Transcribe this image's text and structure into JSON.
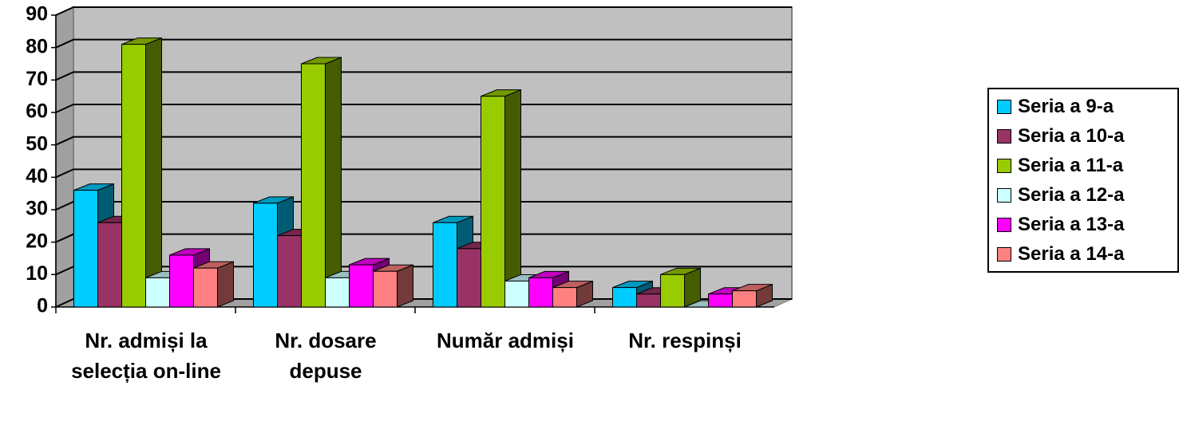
{
  "chart_data": {
    "type": "bar3d",
    "categories": [
      "Nr. admiși la selecția on-line",
      "Nr. dosare depuse",
      "Număr admiși",
      "Nr. respinși"
    ],
    "series": [
      {
        "name": "Seria a 9-a",
        "color": "#00ccff",
        "values": [
          36,
          32,
          26,
          6
        ]
      },
      {
        "name": "Seria a 10-a",
        "color": "#993366",
        "values": [
          26,
          22,
          18,
          4
        ]
      },
      {
        "name": "Seria a 11-a",
        "color": "#99cc00",
        "values": [
          81,
          75,
          65,
          10
        ]
      },
      {
        "name": "Seria a 12-a",
        "color": "#ccffff",
        "values": [
          9,
          9,
          8,
          0
        ]
      },
      {
        "name": "Seria a 13-a",
        "color": "#ff00ff",
        "values": [
          16,
          13,
          9,
          4
        ]
      },
      {
        "name": "Seria a 14-a",
        "color": "#ff8080",
        "values": [
          12,
          11,
          6,
          5
        ]
      }
    ],
    "ylim": [
      0,
      90
    ],
    "yticks": [
      0,
      10,
      20,
      30,
      40,
      50,
      60,
      70,
      80,
      90
    ],
    "grid": true,
    "legend": "right"
  }
}
